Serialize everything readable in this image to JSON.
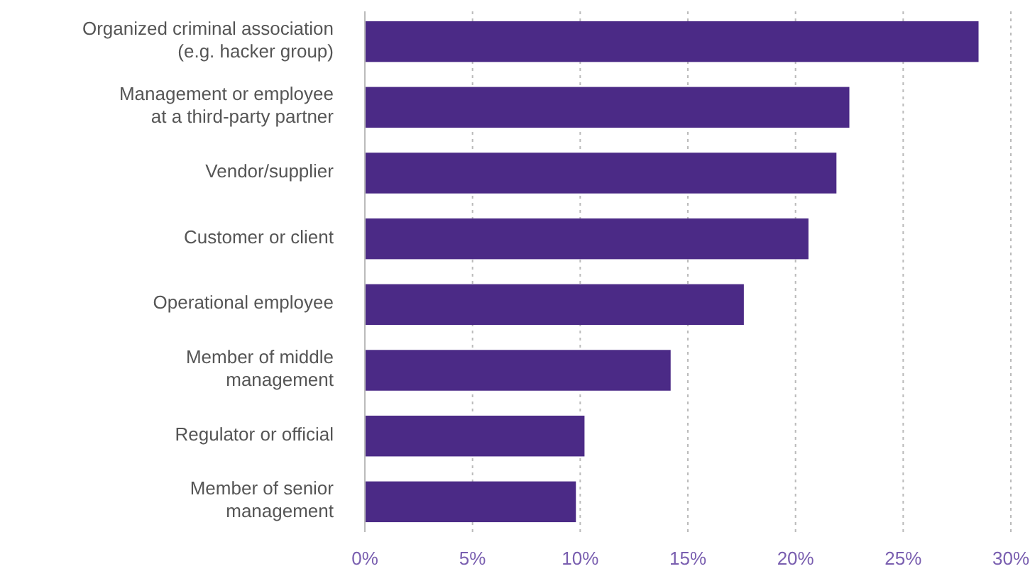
{
  "chart_data": {
    "type": "bar",
    "orientation": "horizontal",
    "categories": [
      "Organized criminal association (e.g. hacker group)",
      "Management or employee at a third-party partner",
      "Vendor/supplier",
      "Customer or client",
      "Operational employee",
      "Member of middle management",
      "Regulator or official",
      "Member of senior management"
    ],
    "values": [
      28.5,
      22.5,
      21.9,
      20.6,
      17.6,
      14.2,
      10.2,
      9.8
    ],
    "color": "#4b2a86",
    "xlim": [
      0,
      30
    ],
    "xticks": [
      {
        "value": 0,
        "label": "0%"
      },
      {
        "value": 5,
        "label": "5%"
      },
      {
        "value": 10,
        "label": "10%"
      },
      {
        "value": 15,
        "label": "15%"
      },
      {
        "value": 20,
        "label": "20%"
      },
      {
        "value": 25,
        "label": "25%"
      },
      {
        "value": 30,
        "label": "30%"
      }
    ],
    "grid": "x"
  }
}
